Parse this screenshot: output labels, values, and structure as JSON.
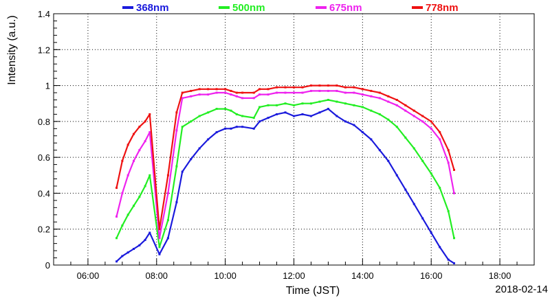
{
  "chart_data": {
    "type": "scatter",
    "xlabel": "Time (JST)",
    "ylabel": "Intensity (a.u.)",
    "date_label": "2018-02-14",
    "xlim": [
      "05:00",
      "19:00"
    ],
    "ylim": [
      0,
      1.4
    ],
    "x_ticks": [
      "06:00",
      "08:00",
      "10:00",
      "12:00",
      "14:00",
      "16:00",
      "18:00"
    ],
    "y_ticks": [
      "0",
      "0.2",
      "0.4",
      "0.6",
      "0.8",
      "1",
      "1.2",
      "1.4"
    ],
    "grid": true,
    "legend_position": "top",
    "series": [
      {
        "name": "368nm",
        "color": "#1a1adc",
        "x": [
          "06:50",
          "07:00",
          "07:10",
          "07:20",
          "07:30",
          "07:40",
          "07:48",
          "08:05",
          "08:20",
          "08:35",
          "08:45",
          "09:00",
          "09:15",
          "09:30",
          "09:45",
          "10:00",
          "10:10",
          "10:20",
          "10:30",
          "10:50",
          "11:00",
          "11:15",
          "11:30",
          "11:45",
          "12:00",
          "12:15",
          "12:30",
          "12:45",
          "13:00",
          "13:15",
          "13:30",
          "13:45",
          "14:00",
          "14:15",
          "14:30",
          "14:45",
          "15:00",
          "15:15",
          "15:30",
          "15:45",
          "16:00",
          "16:15",
          "16:30",
          "16:40"
        ],
        "y": [
          0.02,
          0.05,
          0.07,
          0.09,
          0.11,
          0.14,
          0.18,
          0.06,
          0.15,
          0.35,
          0.52,
          0.59,
          0.65,
          0.7,
          0.74,
          0.76,
          0.76,
          0.77,
          0.77,
          0.76,
          0.8,
          0.82,
          0.84,
          0.85,
          0.83,
          0.84,
          0.83,
          0.85,
          0.87,
          0.83,
          0.8,
          0.78,
          0.74,
          0.7,
          0.64,
          0.58,
          0.5,
          0.42,
          0.34,
          0.26,
          0.18,
          0.1,
          0.03,
          0.01
        ]
      },
      {
        "name": "500nm",
        "color": "#22ee22",
        "x": [
          "06:50",
          "07:00",
          "07:10",
          "07:20",
          "07:30",
          "07:40",
          "07:48",
          "08:05",
          "08:20",
          "08:35",
          "08:45",
          "09:00",
          "09:15",
          "09:30",
          "09:45",
          "10:00",
          "10:10",
          "10:20",
          "10:30",
          "10:50",
          "11:00",
          "11:15",
          "11:30",
          "11:45",
          "12:00",
          "12:15",
          "12:30",
          "12:45",
          "13:00",
          "13:15",
          "13:30",
          "13:45",
          "14:00",
          "14:15",
          "14:30",
          "14:45",
          "15:00",
          "15:15",
          "15:30",
          "15:45",
          "16:00",
          "16:15",
          "16:30",
          "16:40"
        ],
        "y": [
          0.15,
          0.22,
          0.28,
          0.33,
          0.38,
          0.44,
          0.5,
          0.1,
          0.25,
          0.55,
          0.77,
          0.8,
          0.83,
          0.85,
          0.87,
          0.87,
          0.86,
          0.84,
          0.83,
          0.82,
          0.88,
          0.89,
          0.89,
          0.9,
          0.89,
          0.9,
          0.9,
          0.91,
          0.92,
          0.91,
          0.9,
          0.89,
          0.88,
          0.86,
          0.84,
          0.81,
          0.77,
          0.71,
          0.65,
          0.58,
          0.51,
          0.43,
          0.3,
          0.15
        ]
      },
      {
        "name": "675nm",
        "color": "#ee22ee",
        "x": [
          "06:50",
          "07:00",
          "07:10",
          "07:20",
          "07:30",
          "07:40",
          "07:48",
          "08:05",
          "08:20",
          "08:35",
          "08:45",
          "09:00",
          "09:15",
          "09:30",
          "09:45",
          "10:00",
          "10:10",
          "10:20",
          "10:30",
          "10:50",
          "11:00",
          "11:15",
          "11:30",
          "11:45",
          "12:00",
          "12:15",
          "12:30",
          "12:45",
          "13:00",
          "13:15",
          "13:30",
          "13:45",
          "14:00",
          "14:15",
          "14:30",
          "14:45",
          "15:00",
          "15:15",
          "15:30",
          "15:45",
          "16:00",
          "16:15",
          "16:30",
          "16:40"
        ],
        "y": [
          0.27,
          0.4,
          0.5,
          0.58,
          0.64,
          0.69,
          0.74,
          0.15,
          0.4,
          0.75,
          0.93,
          0.94,
          0.95,
          0.95,
          0.96,
          0.96,
          0.95,
          0.94,
          0.93,
          0.93,
          0.95,
          0.95,
          0.96,
          0.96,
          0.96,
          0.96,
          0.97,
          0.97,
          0.97,
          0.97,
          0.96,
          0.96,
          0.95,
          0.94,
          0.93,
          0.91,
          0.89,
          0.86,
          0.83,
          0.8,
          0.76,
          0.7,
          0.57,
          0.4
        ]
      },
      {
        "name": "778nm",
        "color": "#ee1111",
        "x": [
          "06:50",
          "07:00",
          "07:10",
          "07:20",
          "07:30",
          "07:40",
          "07:48",
          "08:05",
          "08:20",
          "08:35",
          "08:45",
          "09:00",
          "09:15",
          "09:30",
          "09:45",
          "10:00",
          "10:10",
          "10:20",
          "10:30",
          "10:50",
          "11:00",
          "11:15",
          "11:30",
          "11:45",
          "12:00",
          "12:15",
          "12:30",
          "12:45",
          "13:00",
          "13:15",
          "13:30",
          "13:45",
          "14:00",
          "14:15",
          "14:30",
          "14:45",
          "15:00",
          "15:15",
          "15:30",
          "15:45",
          "16:00",
          "16:15",
          "16:30",
          "16:40"
        ],
        "y": [
          0.43,
          0.58,
          0.67,
          0.73,
          0.77,
          0.8,
          0.84,
          0.2,
          0.5,
          0.85,
          0.96,
          0.97,
          0.98,
          0.98,
          0.98,
          0.98,
          0.97,
          0.96,
          0.96,
          0.96,
          0.98,
          0.98,
          0.99,
          0.99,
          0.99,
          0.99,
          1.0,
          1.0,
          1.0,
          1.0,
          0.99,
          0.99,
          0.98,
          0.97,
          0.96,
          0.94,
          0.92,
          0.89,
          0.86,
          0.83,
          0.8,
          0.74,
          0.64,
          0.53
        ]
      }
    ]
  }
}
